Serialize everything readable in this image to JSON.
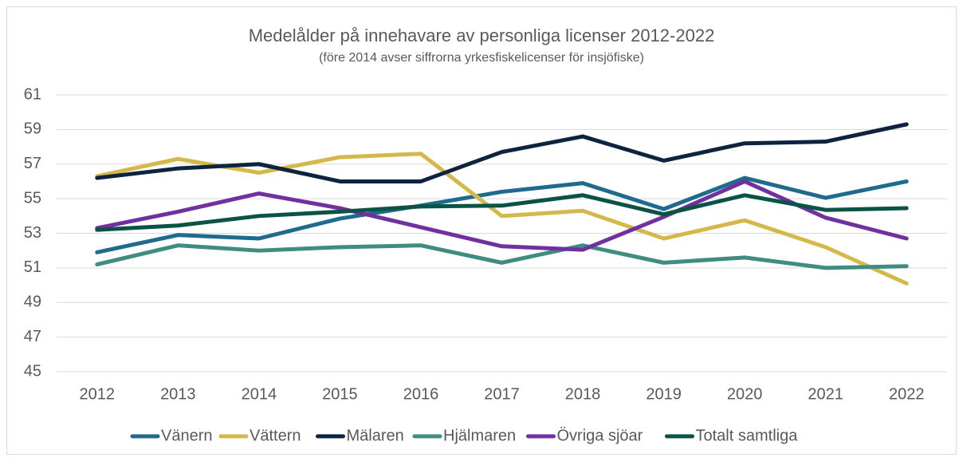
{
  "chart_data": {
    "type": "line",
    "title": "Medelålder på innehavare av personliga licenser 2012-2022",
    "subtitle": "(före 2014 avser siffrorna yrkesfiskelicenser för insjöfiske)",
    "categories": [
      "2012",
      "2013",
      "2014",
      "2015",
      "2016",
      "2017",
      "2018",
      "2019",
      "2020",
      "2021",
      "2022"
    ],
    "series": [
      {
        "name": "Vänern",
        "color": "#1f6b8e",
        "values": [
          51.9,
          52.9,
          52.7,
          53.85,
          54.6,
          55.4,
          55.9,
          54.4,
          56.2,
          55.05,
          56.0
        ]
      },
      {
        "name": "Vättern",
        "color": "#d4b84a",
        "values": [
          56.3,
          57.3,
          56.5,
          57.4,
          57.6,
          54.0,
          54.3,
          52.7,
          53.75,
          52.2,
          50.1
        ]
      },
      {
        "name": "Mälaren",
        "color": "#0d2340",
        "values": [
          56.2,
          56.75,
          57.0,
          56.0,
          56.0,
          57.7,
          58.6,
          57.2,
          58.2,
          58.3,
          59.3
        ]
      },
      {
        "name": "Hjälmaren",
        "color": "#3f8c80",
        "values": [
          51.2,
          52.3,
          52.0,
          52.2,
          52.3,
          51.3,
          52.3,
          51.3,
          51.6,
          51.0,
          51.1
        ]
      },
      {
        "name": "Övriga sjöar",
        "color": "#7030a0",
        "values": [
          53.3,
          54.25,
          55.3,
          54.45,
          53.35,
          52.25,
          52.05,
          53.95,
          56.0,
          53.9,
          52.7
        ]
      },
      {
        "name": "Totalt samtliga",
        "color": "#0b5345",
        "values": [
          53.2,
          53.45,
          54.0,
          54.25,
          54.55,
          54.6,
          55.2,
          54.1,
          55.2,
          54.35,
          54.45
        ]
      }
    ],
    "ylim": [
      45,
      61
    ],
    "yticks": [
      45,
      47,
      49,
      51,
      53,
      55,
      57,
      59,
      61
    ],
    "grid": true,
    "legend": "bottom"
  }
}
